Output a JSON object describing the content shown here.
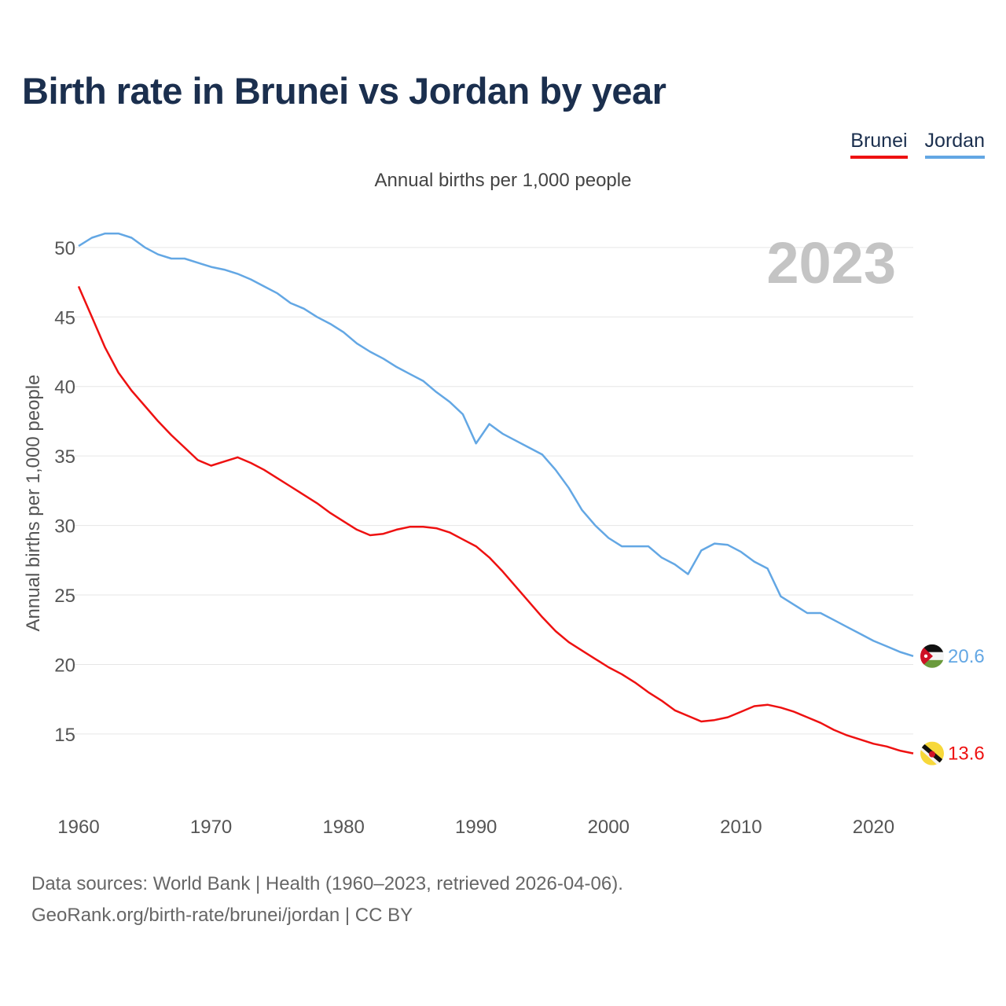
{
  "title": "Birth rate in Brunei vs Jordan by year",
  "legend": [
    {
      "name": "Brunei",
      "color": "#ee1111"
    },
    {
      "name": "Jordan",
      "color": "#63a7e4"
    }
  ],
  "footer": {
    "line1": "Data sources: World Bank | Health (1960–2023, retrieved 2026-04-06).",
    "line2": "GeoRank.org/birth-rate/brunei/jordan | CC BY"
  },
  "chart_data": {
    "type": "line",
    "title": "Birth rate in Brunei vs Jordan by year",
    "subtitle": "Annual births per 1,000 people",
    "ylabel": "Annual births per 1,000 people",
    "xlabel": "",
    "year_label": "2023",
    "xlim": [
      1960,
      2023
    ],
    "ylim": [
      10.3,
      51.8
    ],
    "yticks": [
      15,
      20,
      25,
      30,
      35,
      40,
      45,
      50
    ],
    "xticks": [
      1960,
      1970,
      1980,
      1990,
      2000,
      2010,
      2020
    ],
    "grid": true,
    "x_start": 1960,
    "series": [
      {
        "name": "Brunei",
        "color": "#ee1111",
        "end_label": "13.6",
        "values": [
          47.2,
          45.0,
          42.8,
          41.0,
          39.7,
          38.6,
          37.5,
          36.5,
          35.6,
          34.7,
          34.3,
          34.6,
          34.9,
          34.5,
          34.0,
          33.4,
          32.8,
          32.2,
          31.6,
          30.9,
          30.3,
          29.7,
          29.3,
          29.4,
          29.7,
          29.9,
          29.9,
          29.8,
          29.5,
          29.0,
          28.5,
          27.7,
          26.7,
          25.6,
          24.5,
          23.4,
          22.4,
          21.6,
          21.0,
          20.4,
          19.8,
          19.3,
          18.7,
          18.0,
          17.4,
          16.7,
          16.3,
          15.9,
          16.0,
          16.2,
          16.6,
          17.0,
          17.1,
          16.9,
          16.6,
          16.2,
          15.8,
          15.3,
          14.9,
          14.6,
          14.3,
          14.1,
          13.8,
          13.6
        ]
      },
      {
        "name": "Jordan",
        "color": "#63a7e4",
        "end_label": "20.6",
        "values": [
          50.1,
          50.7,
          51.0,
          51.0,
          50.7,
          50.0,
          49.5,
          49.2,
          49.2,
          48.9,
          48.6,
          48.4,
          48.1,
          47.7,
          47.2,
          46.7,
          46.0,
          45.6,
          45.0,
          44.5,
          43.9,
          43.1,
          42.5,
          42.0,
          41.4,
          40.9,
          40.4,
          39.6,
          38.9,
          38.0,
          35.9,
          37.3,
          36.6,
          36.1,
          35.6,
          35.1,
          34.0,
          32.7,
          31.1,
          30.0,
          29.1,
          28.5,
          28.5,
          28.5,
          27.7,
          27.2,
          26.5,
          28.2,
          28.7,
          28.6,
          28.1,
          27.4,
          26.9,
          24.9,
          24.3,
          23.7,
          23.7,
          23.2,
          22.7,
          22.2,
          21.7,
          21.3,
          20.9,
          20.6
        ]
      }
    ]
  }
}
